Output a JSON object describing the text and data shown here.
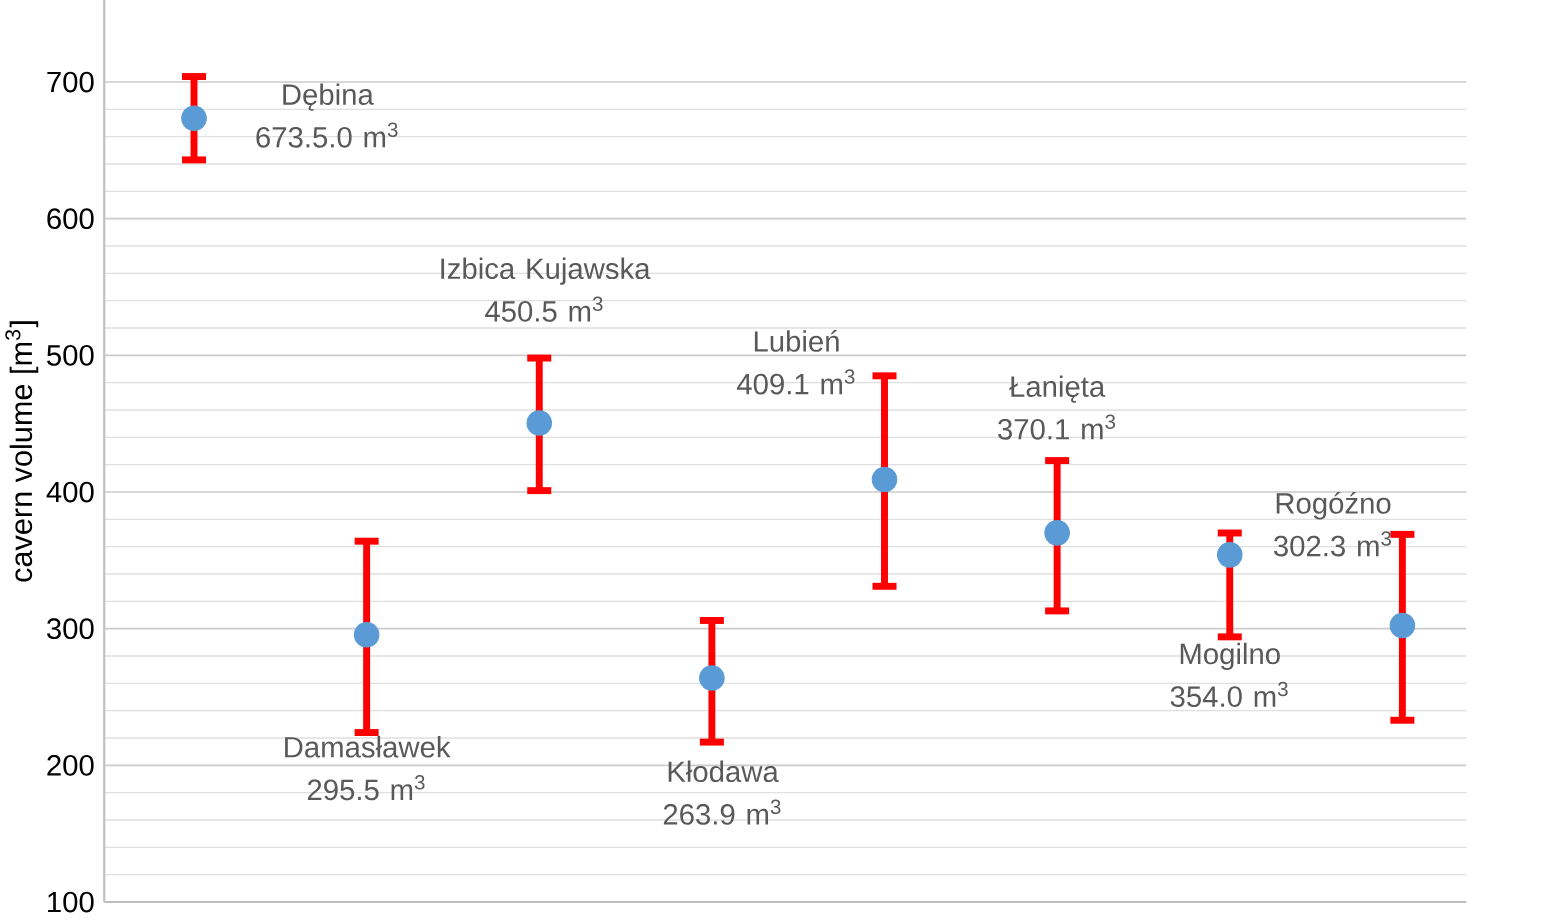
{
  "chart_data": {
    "type": "scatter",
    "ylabel": "cavern volume [m$^{3}$]",
    "categories": [
      null,
      null,
      null,
      null,
      null,
      null,
      null,
      null
    ],
    "values": [
      673.5,
      295.5,
      450.5,
      263.9,
      409.1,
      370.1,
      354.0,
      302.3
    ],
    "value_labels": [
      "Dębina 673.5.0 m$^{3}$",
      "Damasławek 295.5 m$^{3}$",
      "Izbica Kujawska 450.5 m$^{3}$",
      "Kłodawa 263.9 m$^{3}$",
      "Lubień 409.1 m$^{3}$",
      "Łanięta 370.1 m$^{3}$",
      "Mogilno 354.0 m$^{3}$",
      "Rogóźno 302.3 m$^{3}$"
    ],
    "errors": [
      [
        643,
        704
      ],
      [
        224,
        364
      ],
      [
        401,
        498
      ],
      [
        217,
        306
      ],
      [
        331,
        485
      ],
      [
        313,
        423
      ],
      [
        294,
        370
      ],
      [
        233,
        369
      ]
    ],
    "color": "#5b9bd5",
    "ylim": [
      100,
      760
    ],
    "yticks": [
      100,
      200,
      300,
      400,
      500,
      600,
      700
    ],
    "grid": "y",
    "marker": "circle"
  }
}
